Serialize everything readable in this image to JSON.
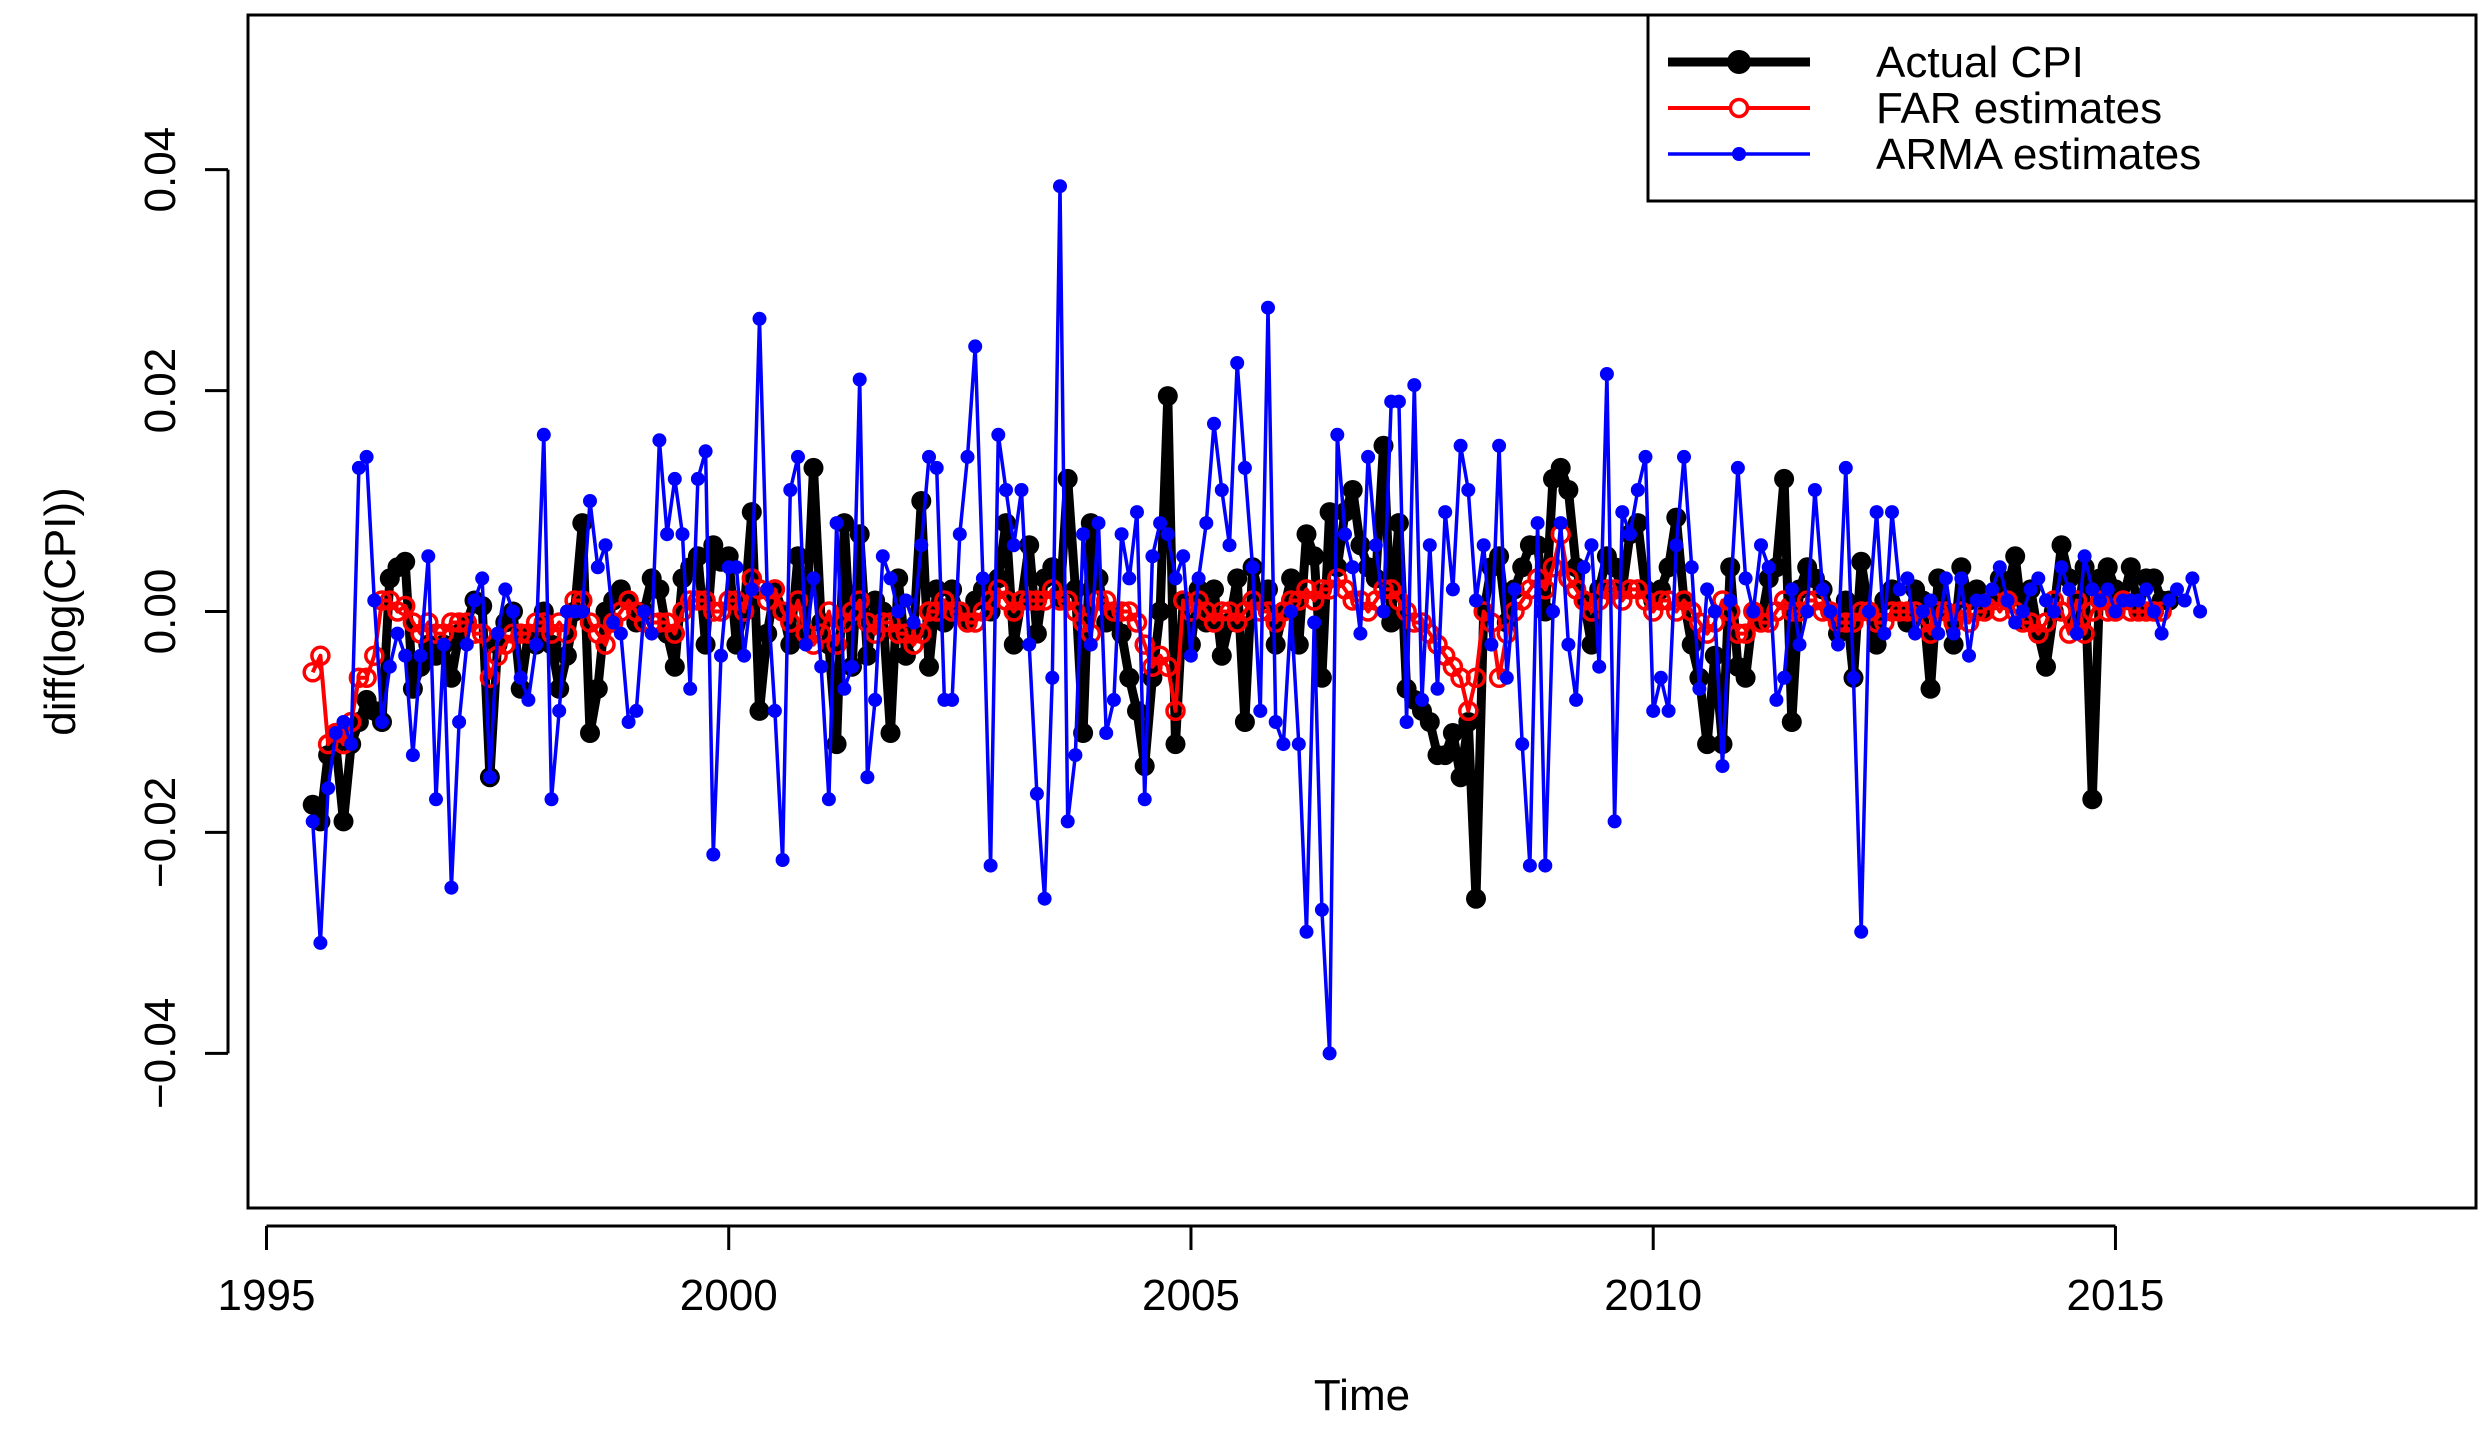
{
  "chart_data": {
    "type": "line",
    "title": "",
    "xlabel": "Time",
    "ylabel": "diff(log(CPI))",
    "xlim": [
      1994.8,
      2018.9
    ],
    "ylim": [
      -0.054,
      0.054
    ],
    "x_ticks": [
      1995,
      2000,
      2005,
      2010,
      2015
    ],
    "x_tick_labels": [
      "1995",
      "2000",
      "2005",
      "2010",
      "2015"
    ],
    "y_ticks": [
      -0.04,
      -0.02,
      0.0,
      0.02,
      0.04
    ],
    "y_tick_labels": [
      "−0.04",
      "−0.02",
      "0.00",
      "0.02",
      "0.04"
    ],
    "grid": false,
    "legend": {
      "placement": "top-right"
    },
    "x_start": 1995.5,
    "x_step": 0.08333,
    "series": [
      {
        "name": "Actual CPI",
        "color": "#000000",
        "marker": "filled-circle",
        "values": [
          -0.0175,
          -0.019,
          -0.013,
          -0.012,
          -0.019,
          -0.012,
          -0.01,
          -0.008,
          -0.009,
          -0.01,
          0.003,
          0.004,
          0.0045,
          -0.007,
          -0.005,
          -0.003,
          -0.004,
          -0.003,
          -0.006,
          -0.002,
          -0.001,
          0.001,
          0.0005,
          -0.015,
          -0.003,
          -0.001,
          0.0,
          -0.007,
          -0.002,
          -0.003,
          0.0,
          -0.003,
          -0.007,
          -0.004,
          0.0,
          0.008,
          -0.011,
          -0.007,
          0.0,
          0.001,
          0.002,
          0.001,
          -0.001,
          0.0,
          0.003,
          0.002,
          -0.002,
          -0.005,
          0.003,
          0.004,
          0.005,
          -0.003,
          0.006,
          0.0045,
          0.005,
          -0.003,
          0.0,
          0.009,
          -0.009,
          -0.002,
          0.002,
          0.0,
          -0.003,
          0.005,
          -0.002,
          0.013,
          -0.001,
          -0.003,
          -0.012,
          0.008,
          -0.005,
          0.007,
          -0.004,
          0.001,
          0.0,
          -0.011,
          0.003,
          -0.004,
          -0.002,
          0.01,
          -0.005,
          0.002,
          -0.001,
          0.002,
          0.0,
          -0.001,
          0.001,
          0.002,
          0.0,
          0.003,
          0.008,
          -0.003,
          0.001,
          0.006,
          -0.002,
          0.003,
          0.004,
          0.001,
          0.012,
          0.002,
          -0.011,
          0.008,
          0.003,
          -0.001,
          0.0,
          -0.002,
          -0.006,
          -0.009,
          -0.014,
          -0.006,
          0.0,
          0.0195,
          -0.012,
          0.001,
          -0.003,
          0.002,
          -0.001,
          0.002,
          -0.004,
          -0.001,
          0.003,
          -0.01,
          0.004,
          0.001,
          0.002,
          -0.003,
          0.0,
          0.003,
          -0.003,
          0.007,
          0.005,
          -0.006,
          0.009,
          0.004,
          0.009,
          0.011,
          0.006,
          0.004,
          0.003,
          0.015,
          -0.001,
          0.008,
          -0.007,
          -0.008,
          -0.009,
          -0.01,
          -0.013,
          -0.013,
          -0.011,
          -0.015,
          -0.01,
          -0.026,
          0.0,
          0.004,
          0.005,
          -0.001,
          0.002,
          0.004,
          0.006,
          0.006,
          0.0,
          0.012,
          0.013,
          0.011,
          0.004,
          0.001,
          -0.003,
          0.002,
          0.005,
          0.004,
          0.002,
          0.007,
          0.008,
          0.002,
          0.001,
          0.002,
          0.004,
          0.0085,
          0.001,
          -0.003,
          -0.006,
          -0.012,
          -0.004,
          -0.012,
          0.004,
          -0.005,
          -0.006,
          0.0,
          -0.001,
          0.003,
          0.004,
          0.012,
          -0.01,
          0.002,
          0.004,
          0.003,
          0.002,
          0.0,
          -0.002,
          0.001,
          -0.006,
          0.0045,
          0.0,
          -0.003,
          0.001,
          0.002,
          0.0,
          -0.001,
          0.002,
          0.001,
          -0.007,
          0.003,
          0.0,
          -0.003,
          0.004,
          0.001,
          0.002,
          0.0,
          0.001,
          0.003,
          0.002,
          0.005,
          -0.001,
          0.002,
          -0.002,
          -0.005,
          0.0,
          0.006,
          0.003,
          -0.001,
          0.004,
          -0.017,
          0.003,
          0.004,
          0.002,
          0.001,
          0.004,
          0.0,
          0.003,
          0.003,
          0.001,
          0.001
        ]
      },
      {
        "name": "FAR estimates",
        "color": "#ff0000",
        "marker": "open-circle",
        "values": [
          -0.0055,
          -0.004,
          -0.012,
          -0.011,
          -0.012,
          -0.01,
          -0.006,
          -0.006,
          -0.004,
          0.001,
          0.001,
          0.0,
          0.0005,
          -0.001,
          -0.002,
          -0.001,
          -0.002,
          -0.002,
          -0.001,
          -0.001,
          -0.001,
          -0.002,
          -0.002,
          -0.006,
          -0.004,
          -0.003,
          -0.002,
          -0.002,
          -0.002,
          -0.001,
          -0.001,
          -0.002,
          -0.001,
          -0.002,
          0.001,
          0.001,
          -0.001,
          -0.002,
          -0.003,
          -0.001,
          0.0,
          0.001,
          0.0,
          -0.001,
          -0.001,
          -0.001,
          -0.001,
          -0.002,
          0.0,
          0.001,
          0.001,
          0.001,
          0.0,
          0.0,
          0.001,
          0.001,
          0.0,
          0.003,
          0.002,
          0.001,
          0.002,
          0.0,
          -0.001,
          0.001,
          -0.002,
          -0.003,
          -0.002,
          0.0,
          -0.003,
          -0.001,
          0.0,
          0.001,
          -0.001,
          -0.002,
          -0.001,
          -0.001,
          -0.002,
          -0.002,
          -0.003,
          -0.002,
          0.0,
          0.0,
          0.001,
          0.0,
          0.0,
          -0.001,
          -0.001,
          0.0,
          0.001,
          0.002,
          0.001,
          0.0,
          0.001,
          0.001,
          0.001,
          0.001,
          0.002,
          0.001,
          0.001,
          0.0,
          -0.001,
          -0.002,
          0.001,
          0.001,
          0.0,
          0.0,
          0.0,
          -0.001,
          -0.003,
          -0.005,
          -0.004,
          -0.005,
          -0.009,
          0.001,
          0.0,
          0.001,
          0.0,
          -0.001,
          0.0,
          0.0,
          -0.001,
          0.0,
          0.001,
          0.0,
          0.0,
          -0.001,
          0.0,
          0.001,
          0.001,
          0.002,
          0.001,
          0.002,
          0.002,
          0.003,
          0.002,
          0.001,
          0.001,
          0.0,
          0.001,
          0.002,
          0.002,
          0.001,
          0.0,
          -0.001,
          -0.001,
          -0.002,
          -0.003,
          -0.004,
          -0.005,
          -0.006,
          -0.009,
          -0.006,
          0.0,
          -0.001,
          -0.006,
          -0.002,
          0.0,
          0.001,
          0.002,
          0.003,
          0.002,
          0.004,
          0.007,
          0.003,
          0.002,
          0.001,
          0.0,
          0.001,
          0.002,
          0.002,
          0.001,
          0.002,
          0.002,
          0.001,
          0.0,
          0.001,
          0.001,
          0.0,
          0.001,
          0.0,
          -0.001,
          -0.002,
          -0.001,
          0.001,
          0.0,
          -0.002,
          -0.002,
          0.0,
          -0.001,
          -0.001,
          0.0,
          0.001,
          0.0,
          0.0,
          0.001,
          0.001,
          0.0,
          0.0,
          -0.001,
          -0.001,
          -0.001,
          0.0,
          0.0,
          -0.001,
          -0.001,
          0.0,
          0.0,
          0.0,
          0.0,
          -0.001,
          -0.002,
          0.0,
          0.0,
          -0.001,
          0.0,
          -0.001,
          0.0,
          0.0,
          0.001,
          0.0,
          0.001,
          0.0,
          -0.001,
          -0.001,
          -0.002,
          -0.001,
          0.001,
          0.0,
          -0.002,
          0.001,
          -0.002,
          0.0,
          0.001,
          0.0,
          0.0,
          0.001,
          0.0,
          0.0,
          0.0,
          0.0,
          0.0
        ]
      },
      {
        "name": "ARMA estimates",
        "color": "#0000ff",
        "marker": "filled-dot",
        "values": [
          -0.019,
          -0.03,
          -0.016,
          -0.011,
          -0.01,
          -0.012,
          0.013,
          0.014,
          0.001,
          -0.01,
          -0.005,
          -0.002,
          -0.004,
          -0.013,
          -0.004,
          0.005,
          -0.017,
          -0.003,
          -0.025,
          -0.01,
          -0.003,
          0.001,
          0.003,
          -0.015,
          -0.002,
          0.002,
          0.0,
          -0.006,
          -0.008,
          -0.003,
          0.016,
          -0.017,
          -0.009,
          0.0,
          0.0,
          0.0,
          0.01,
          0.004,
          0.006,
          -0.001,
          -0.002,
          -0.01,
          -0.009,
          0.0,
          -0.002,
          0.0155,
          0.007,
          0.012,
          0.007,
          -0.007,
          0.012,
          0.0145,
          -0.022,
          -0.004,
          0.004,
          0.004,
          -0.004,
          0.002,
          0.0265,
          0.002,
          -0.009,
          -0.0225,
          0.011,
          0.014,
          -0.003,
          0.003,
          -0.005,
          -0.017,
          0.008,
          -0.007,
          -0.005,
          0.021,
          -0.015,
          -0.008,
          0.005,
          0.003,
          0.0,
          0.001,
          -0.001,
          0.006,
          0.014,
          0.013,
          -0.008,
          -0.008,
          0.007,
          0.014,
          0.024,
          0.003,
          -0.023,
          0.016,
          0.011,
          0.006,
          0.011,
          -0.003,
          -0.0165,
          -0.026,
          -0.006,
          0.0385,
          -0.019,
          -0.013,
          0.007,
          -0.003,
          0.008,
          -0.011,
          -0.008,
          0.007,
          0.003,
          0.009,
          -0.017,
          0.005,
          0.008,
          0.007,
          0.003,
          0.005,
          -0.004,
          0.003,
          0.008,
          0.017,
          0.011,
          0.006,
          0.0225,
          0.013,
          0.004,
          -0.009,
          0.0275,
          -0.01,
          -0.012,
          0.0,
          -0.012,
          -0.029,
          -0.001,
          -0.027,
          -0.04,
          0.016,
          0.007,
          0.004,
          -0.002,
          0.014,
          0.006,
          0.0,
          0.019,
          0.019,
          -0.01,
          0.0205,
          -0.008,
          0.006,
          -0.007,
          0.009,
          0.002,
          0.015,
          0.011,
          0.001,
          0.006,
          -0.003,
          0.015,
          -0.006,
          0.002,
          -0.012,
          -0.023,
          0.008,
          -0.023,
          0.0,
          0.008,
          -0.003,
          -0.008,
          0.004,
          0.006,
          -0.005,
          0.0215,
          -0.019,
          0.009,
          0.007,
          0.011,
          0.014,
          -0.009,
          -0.006,
          -0.009,
          0.006,
          0.014,
          0.004,
          -0.007,
          0.002,
          0.0,
          -0.014,
          0.001,
          0.013,
          0.003,
          0.0,
          0.006,
          0.004,
          -0.008,
          -0.006,
          0.002,
          -0.003,
          0.0,
          0.011,
          0.002,
          0.0,
          -0.003,
          0.013,
          -0.006,
          -0.029,
          0.0,
          0.009,
          -0.002,
          0.009,
          0.002,
          0.003,
          -0.002,
          0.0,
          0.001,
          -0.002,
          0.003,
          -0.002,
          0.003,
          -0.004,
          0.001,
          0.001,
          0.002,
          0.004,
          0.001,
          -0.001,
          0.0,
          0.002,
          0.003,
          0.001,
          0.0,
          0.004,
          0.002,
          -0.002,
          0.005,
          0.002,
          0.001,
          0.002,
          0.0,
          0.001,
          0.001,
          0.001,
          0.002,
          0.0,
          -0.002,
          0.001,
          0.002,
          0.001,
          0.003,
          0.0
        ]
      }
    ]
  }
}
